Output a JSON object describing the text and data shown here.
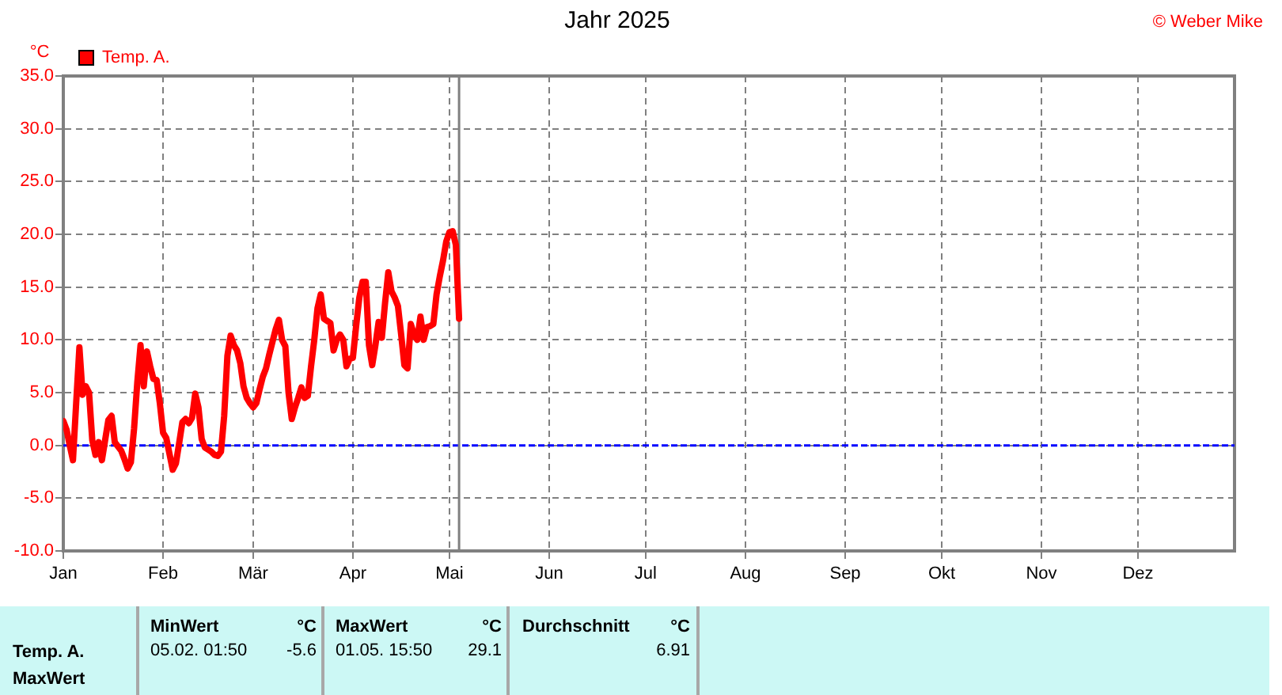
{
  "chart_data": {
    "type": "line",
    "title": "Jahr 2025",
    "ylabel": "°C",
    "annotations": [
      "© Weber Mike",
      "Temp. A.",
      "MaxWert",
      "MinWert",
      "°C",
      "05.02. 01:50",
      "-5.6",
      "MaxWert",
      "°C",
      "01.05. 15:50",
      "29.1",
      "Durchschnitt",
      "°C",
      "6.91"
    ],
    "x": [
      "--01-01",
      "--01-02",
      "--01-03",
      "--01-04",
      "--01-05",
      "--01-06",
      "--01-07",
      "--01-08",
      "--01-09",
      "--01-10",
      "--01-11",
      "--01-12",
      "--01-13",
      "--01-14",
      "--01-15",
      "--01-16",
      "--01-17",
      "--01-18",
      "--01-19",
      "--01-20",
      "--01-21",
      "--01-22",
      "--01-23",
      "--01-24",
      "--01-25",
      "--01-26",
      "--01-27",
      "--01-28",
      "--01-29",
      "--01-30",
      "--01-31",
      "--02-01",
      "--02-02",
      "--02-03",
      "--02-04",
      "--02-05",
      "--02-06",
      "--02-07",
      "--02-08",
      "--02-09",
      "--02-10",
      "--02-11",
      "--02-12",
      "--02-13",
      "--02-14",
      "--02-15",
      "--02-16",
      "--02-17",
      "--02-18",
      "--02-19",
      "--02-20",
      "--02-21",
      "--02-22",
      "--02-23",
      "--02-24",
      "--02-25",
      "--02-26",
      "--02-27",
      "--02-28",
      "--03-01",
      "--03-02",
      "--03-03",
      "--03-04",
      "--03-05",
      "--03-06",
      "--03-07",
      "--03-08",
      "--03-09",
      "--03-10",
      "--03-11",
      "--03-12",
      "--03-13",
      "--03-14",
      "--03-15",
      "--03-16",
      "--03-17",
      "--03-18",
      "--03-19",
      "--03-20",
      "--03-21",
      "--03-22",
      "--03-23",
      "--03-24",
      "--03-25",
      "--03-26",
      "--03-27",
      "--03-28",
      "--03-29",
      "--03-30",
      "--03-31",
      "--04-01",
      "--04-02",
      "--04-03",
      "--04-04",
      "--04-05",
      "--04-06",
      "--04-07",
      "--04-08",
      "--04-09",
      "--04-10",
      "--04-11",
      "--04-12",
      "--04-13",
      "--04-14",
      "--04-15",
      "--04-16",
      "--04-17",
      "--04-18",
      "--04-19",
      "--04-20",
      "--04-21",
      "--04-22",
      "--04-23",
      "--04-24",
      "--04-25",
      "--04-26",
      "--04-27",
      "--04-28",
      "--04-29",
      "--04-30",
      "--05-01",
      "--05-02",
      "--05-03",
      "--05-04"
    ],
    "series": [
      {
        "name": "Temp. A.",
        "color": "#ff0000",
        "values": [
          2.3,
          1.5,
          0.0,
          -1.4,
          4.0,
          9.3,
          4.8,
          5.6,
          5.0,
          0.5,
          -0.9,
          0.3,
          -1.4,
          0.5,
          2.4,
          2.8,
          0.3,
          -0.1,
          -0.5,
          -1.3,
          -2.2,
          -1.6,
          1.6,
          6.0,
          9.5,
          5.6,
          8.9,
          7.5,
          6.3,
          6.2,
          4.0,
          1.2,
          0.7,
          -0.8,
          -2.3,
          -1.7,
          0.2,
          2.2,
          2.5,
          2.1,
          2.6,
          4.9,
          3.6,
          0.6,
          -0.2,
          -0.4,
          -0.6,
          -0.9,
          -1.0,
          -0.6,
          2.8,
          8.5,
          10.4,
          9.5,
          9.0,
          7.8,
          5.6,
          4.5,
          4.0,
          3.6,
          4.0,
          5.3,
          6.5,
          7.3,
          8.6,
          9.8,
          11.0,
          11.9,
          10.0,
          9.4,
          5.0,
          2.5,
          3.6,
          4.5,
          5.5,
          4.5,
          4.7,
          7.5,
          10.0,
          13.0,
          14.3,
          12.0,
          11.8,
          11.6,
          9.0,
          10.0,
          10.5,
          10.0,
          7.5,
          8.2,
          8.3,
          11.3,
          14.0,
          15.5,
          15.5,
          9.5,
          7.6,
          9.5,
          11.7,
          10.2,
          13.5,
          16.4,
          14.6,
          14.0,
          13.2,
          10.5,
          7.6,
          7.3,
          11.5,
          10.5,
          10.0,
          12.2,
          10.0,
          11.2,
          11.3,
          11.5,
          14.3,
          16.0,
          17.5,
          19.3,
          20.2,
          20.3,
          19.0,
          12.0
        ]
      }
    ],
    "xlim": [
      "--01-01",
      "--12-31"
    ],
    "xticks": [
      {
        "value": "--01-01",
        "label": "Jan"
      },
      {
        "value": "--02-01",
        "label": "Feb"
      },
      {
        "value": "--03-01",
        "label": "Mär"
      },
      {
        "value": "--04-01",
        "label": "Apr"
      },
      {
        "value": "--05-01",
        "label": "Mai"
      },
      {
        "value": "--06-01",
        "label": "Jun"
      },
      {
        "value": "--07-01",
        "label": "Jul"
      },
      {
        "value": "--08-01",
        "label": "Aug"
      },
      {
        "value": "--09-01",
        "label": "Sep"
      },
      {
        "value": "--10-01",
        "label": "Okt"
      },
      {
        "value": "--11-01",
        "label": "Nov"
      },
      {
        "value": "--12-01",
        "label": "Dez"
      }
    ],
    "ylim": [
      -10,
      35
    ],
    "yticks": [
      {
        "value": -10,
        "label": "-10.0"
      },
      {
        "value": -5,
        "label": "-5.0"
      },
      {
        "value": 0,
        "label": "0.0"
      },
      {
        "value": 5,
        "label": "5.0"
      },
      {
        "value": 10,
        "label": "10.0"
      },
      {
        "value": 15,
        "label": "15.0"
      },
      {
        "value": 20,
        "label": "20.0"
      },
      {
        "value": 25,
        "label": "25.0"
      },
      {
        "value": 30,
        "label": "30.0"
      },
      {
        "value": 35,
        "label": "35.0"
      }
    ],
    "grid": true,
    "legend": "top left",
    "ref_lines": [
      {
        "axis": "y",
        "value": 0,
        "color": "#0000ff",
        "line_style": "dashed"
      },
      {
        "axis": "x",
        "value": "--05-04",
        "color": "#808080"
      }
    ]
  }
}
